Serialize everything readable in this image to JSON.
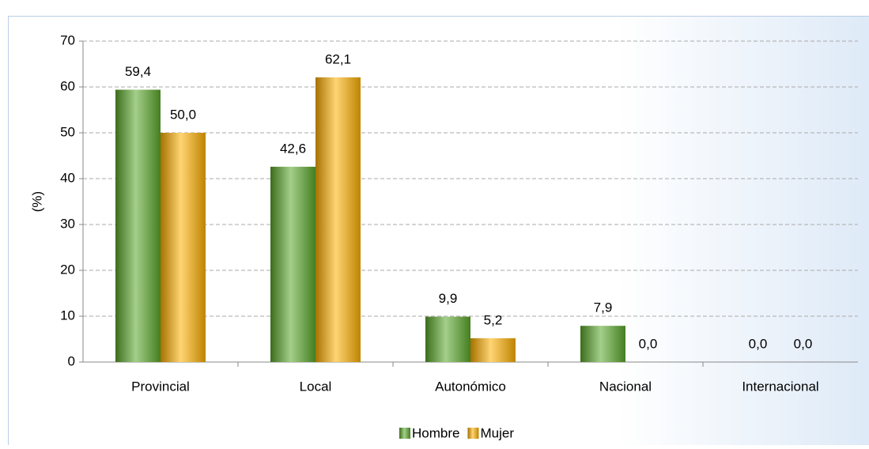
{
  "chart_data": {
    "type": "bar",
    "y_label": "(%)",
    "categories": [
      "Provincial",
      "Local",
      "Autonómico",
      "Nacional",
      "Internacional"
    ],
    "series": [
      {
        "name": "Hombre",
        "color": "#5aa82a",
        "values": [
          59.4,
          42.6,
          9.9,
          7.9,
          0
        ],
        "value_labels": [
          "59,4",
          "42,6",
          "9,9",
          "7,9",
          "0,0"
        ]
      },
      {
        "name": "Mujer",
        "color": "#ffb000",
        "values": [
          50,
          62.1,
          5.2,
          0,
          0
        ],
        "value_labels": [
          "50,0",
          "62,1",
          "5,2",
          "0,0",
          "0,0"
        ]
      }
    ],
    "ylim": [
      0,
      70
    ],
    "yticks": [
      0,
      10,
      20,
      30,
      40,
      50,
      60,
      70
    ],
    "grid": true,
    "legend": "bottom"
  }
}
